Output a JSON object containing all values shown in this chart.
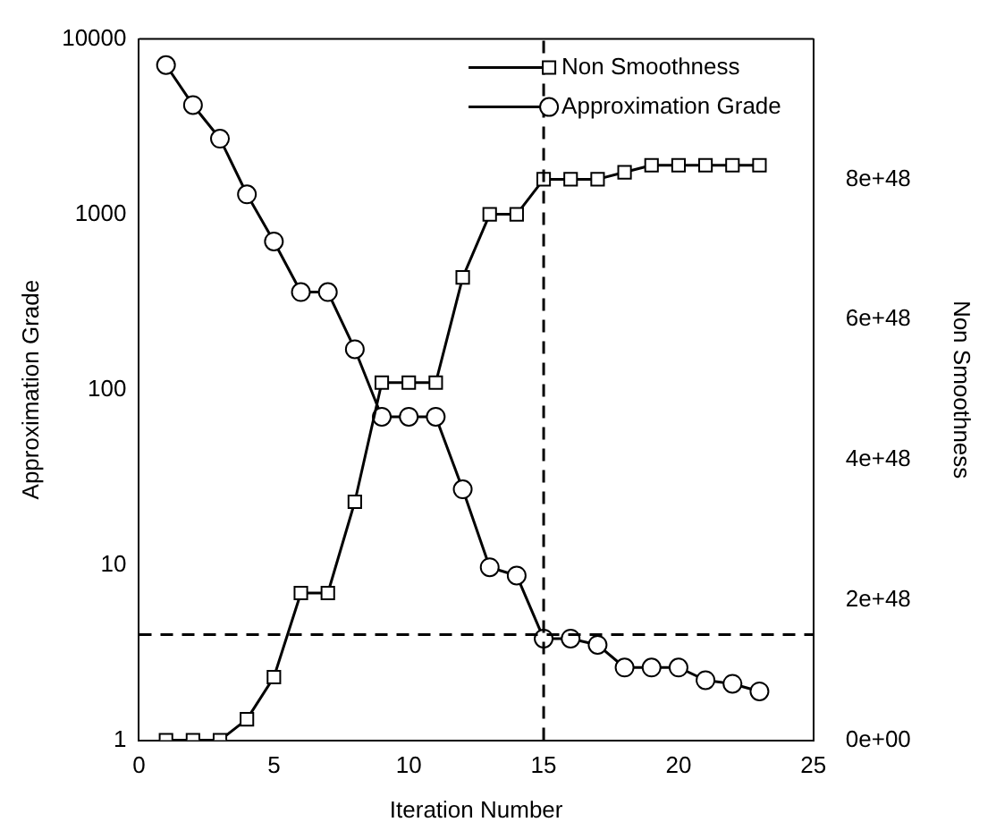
{
  "chart_data": {
    "type": "line",
    "xlabel": "Iteration Number",
    "ylabel": "Approximation Grade",
    "y2label": "Non Smoothness",
    "x": [
      1,
      2,
      3,
      4,
      5,
      6,
      7,
      8,
      9,
      10,
      11,
      12,
      13,
      14,
      15,
      16,
      17,
      18,
      19,
      20,
      21,
      22,
      23
    ],
    "series": [
      {
        "name": "Non Smoothness",
        "color": "#000000",
        "marker": "square",
        "axis": "y2",
        "values": [
          0,
          0,
          0,
          3e+47,
          9e+47,
          2.1e+48,
          2.1e+48,
          3.4e+48,
          5.1e+48,
          5.1e+48,
          5.1e+48,
          6.6e+48,
          7.5e+48,
          7.5e+48,
          8e+48,
          8e+48,
          8e+48,
          8.1e+48,
          8.2e+48,
          8.2e+48,
          8.2e+48,
          8.2e+48,
          8.2e+48
        ]
      },
      {
        "name": "Approximation Grade",
        "color": "#000000",
        "marker": "circle",
        "values": [
          7100,
          4200,
          2700,
          1300,
          700,
          360,
          360,
          170,
          70,
          70,
          70,
          27,
          9.7,
          8.7,
          3.8,
          3.8,
          3.5,
          2.6,
          2.6,
          2.6,
          2.2,
          2.1,
          1.9
        ]
      }
    ],
    "xlim": [
      0,
      25
    ],
    "xticks": [
      0,
      5,
      10,
      15,
      20,
      25
    ],
    "log": "y",
    "ylim": [
      1,
      10000
    ],
    "yticks": [
      1,
      10,
      100,
      1000,
      10000
    ],
    "y2lim": [
      0,
      1e+49
    ],
    "y2ticks": [
      {
        "value": 0,
        "label": "0e+00"
      },
      {
        "value": 2e+48,
        "label": "2e+48"
      },
      {
        "value": 4e+48,
        "label": "4e+48"
      },
      {
        "value": 6e+48,
        "label": "6e+48"
      },
      {
        "value": 8e+48,
        "label": "8e+48"
      }
    ],
    "ref_lines": [
      {
        "axis": "y",
        "value": 4,
        "line_style": "dashed",
        "color": "#000000"
      },
      {
        "axis": "x",
        "value": 15,
        "line_style": "dashed",
        "color": "#000000"
      }
    ],
    "grid": false,
    "legend": "top right",
    "line_style": "solid"
  }
}
